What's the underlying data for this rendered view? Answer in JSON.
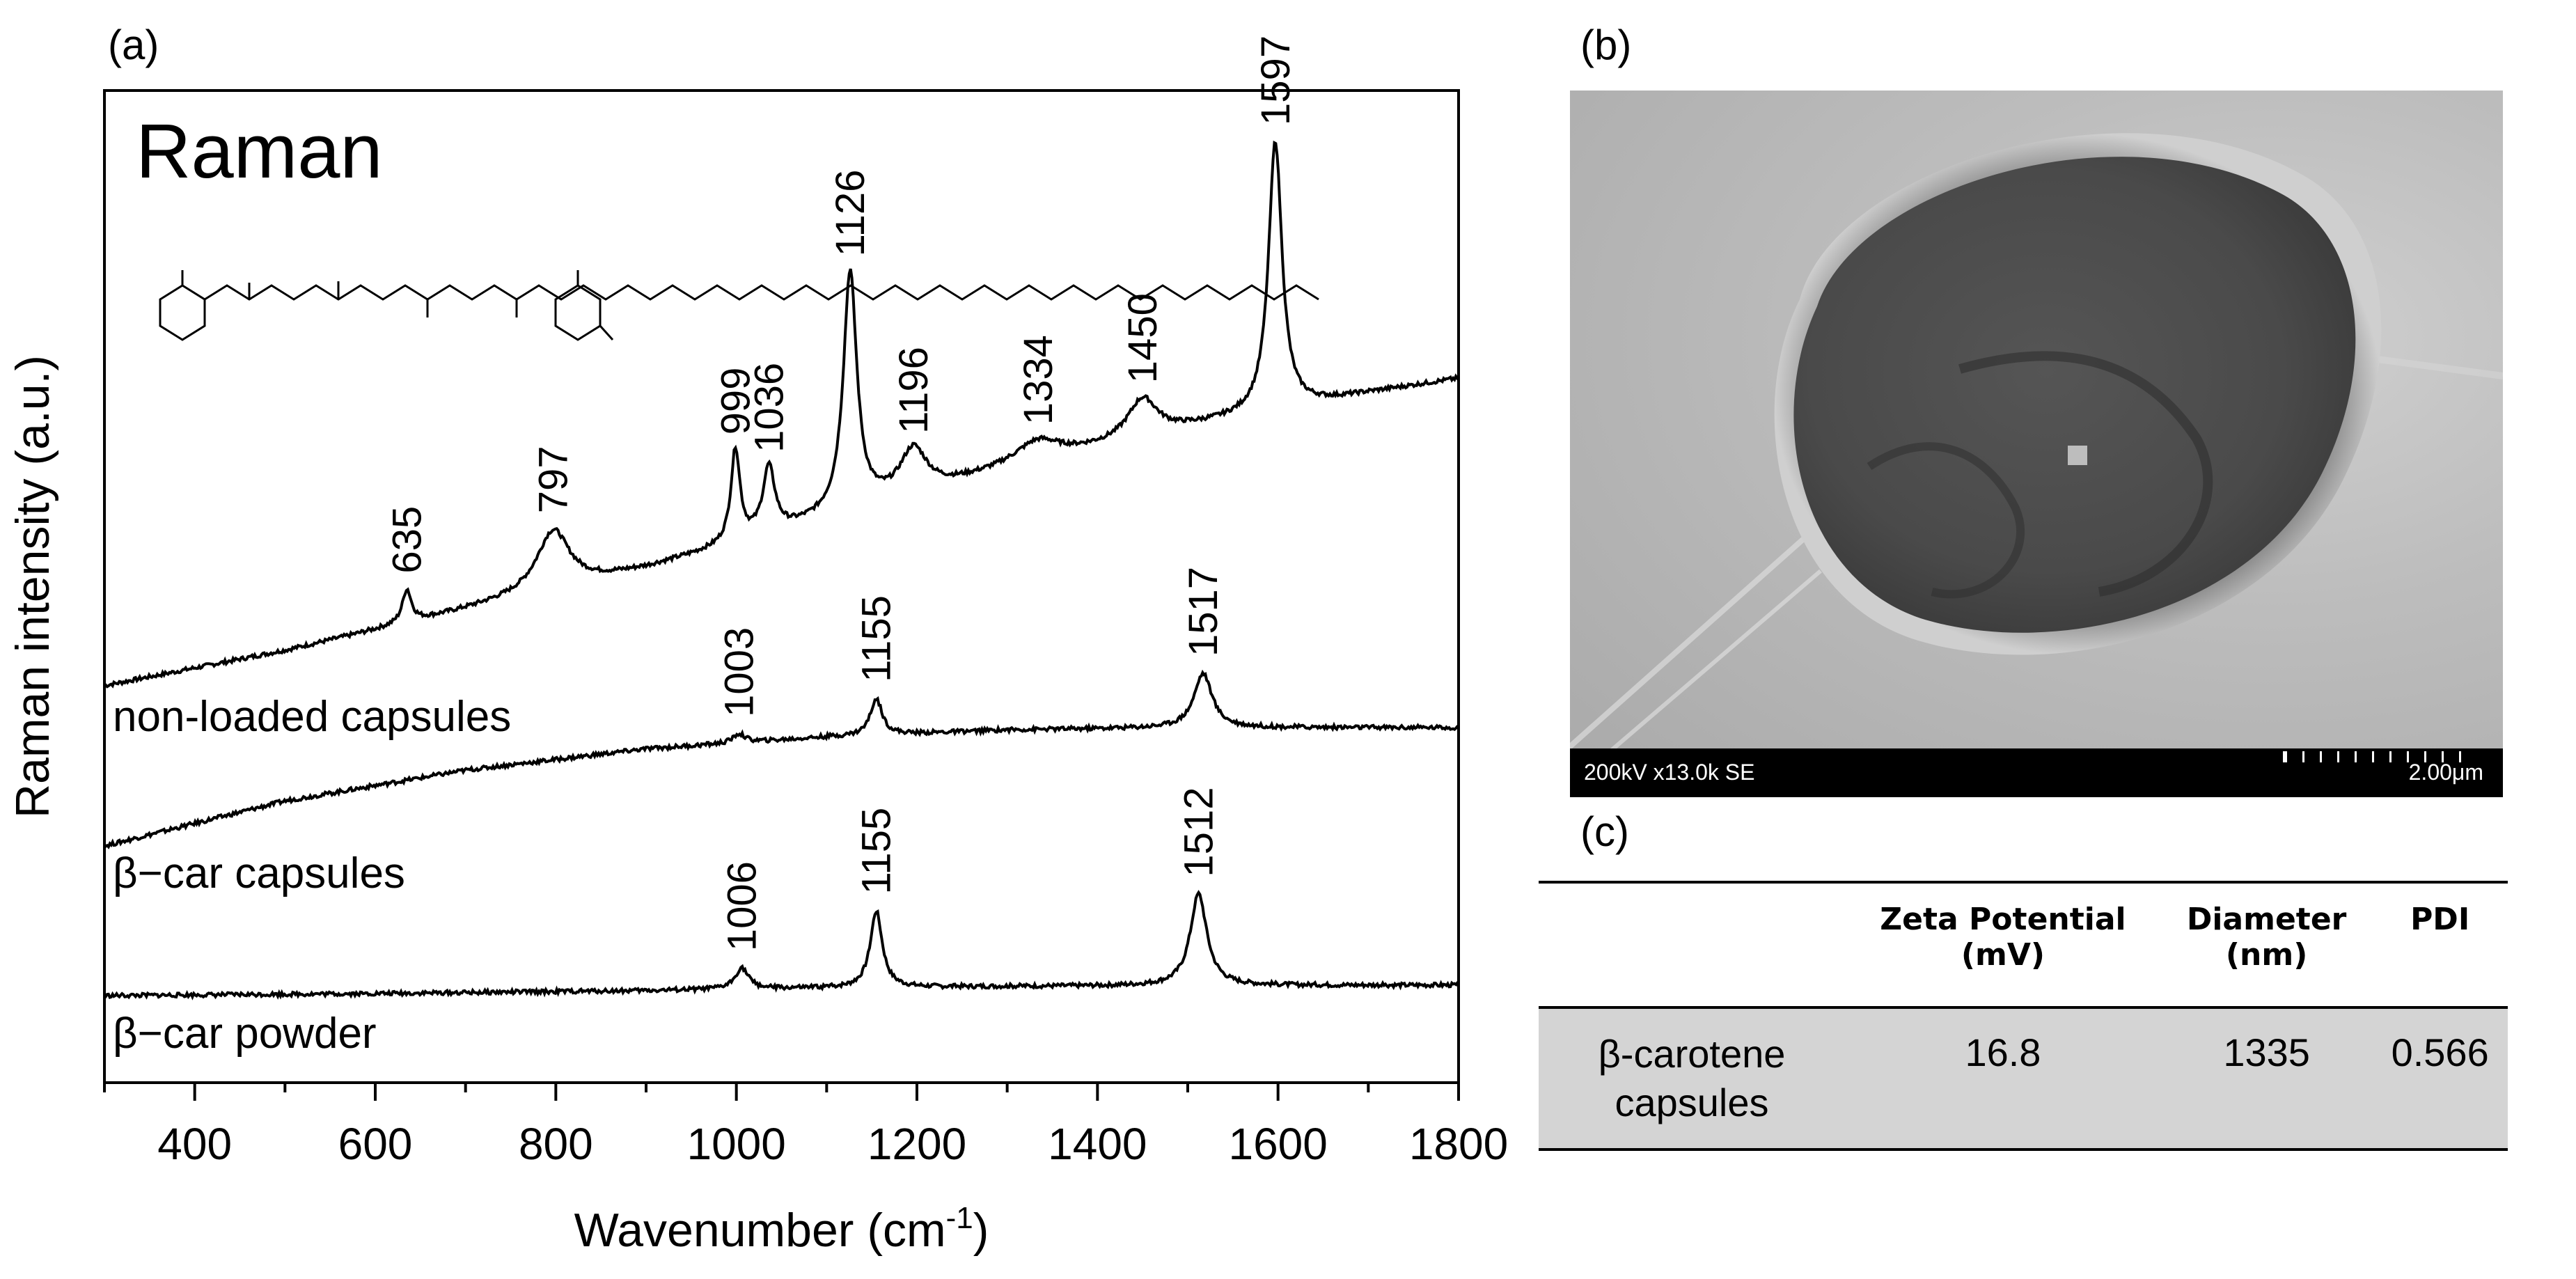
{
  "panels": {
    "a": "(a)",
    "b": "(b)",
    "c": "(c)"
  },
  "chart_data": {
    "type": "line",
    "title": "Raman",
    "xlabel": "Wavenumber (cm",
    "xlabel_sup": "-1",
    "xlabel_close": ")",
    "ylabel": "Raman intensity (a.u.)",
    "xlim": [
      300,
      1800
    ],
    "x_ticks": [
      400,
      600,
      800,
      1000,
      1200,
      1400,
      1600,
      1800
    ],
    "y_ticks": "none",
    "series": [
      {
        "name": "non-loaded capsules",
        "baseline": [
          [
            300,
            0.0
          ],
          [
            500,
            0.12
          ],
          [
            700,
            0.26
          ],
          [
            900,
            0.4
          ],
          [
            1100,
            0.57
          ],
          [
            1300,
            0.74
          ],
          [
            1500,
            0.88
          ],
          [
            1700,
            1.0
          ],
          [
            1800,
            1.05
          ]
        ],
        "peaks": [
          {
            "x": 635,
            "h": 0.22,
            "w": 6,
            "label": "635"
          },
          {
            "x": 797,
            "h": 0.4,
            "w": 22,
            "label": "797"
          },
          {
            "x": 999,
            "h": 0.62,
            "w": 6,
            "label": "999"
          },
          {
            "x": 1036,
            "h": 0.44,
            "w": 8,
            "label": "1036"
          },
          {
            "x": 1126,
            "h": 1.6,
            "w": 9,
            "label": "1126"
          },
          {
            "x": 1196,
            "h": 0.3,
            "w": 18,
            "label": "1196"
          },
          {
            "x": 1334,
            "h": 0.14,
            "w": 30,
            "label": "1334"
          },
          {
            "x": 1450,
            "h": 0.26,
            "w": 20,
            "label": "1450"
          },
          {
            "x": 1597,
            "h": 1.8,
            "w": 9,
            "label": "1597"
          }
        ]
      },
      {
        "name": "β−car capsules",
        "baseline": [
          [
            300,
            0.0
          ],
          [
            500,
            0.38
          ],
          [
            700,
            0.64
          ],
          [
            900,
            0.82
          ],
          [
            1100,
            0.92
          ],
          [
            1300,
            0.98
          ],
          [
            1500,
            1.0
          ],
          [
            1800,
            1.0
          ]
        ],
        "peaks": [
          {
            "x": 1003,
            "h": 0.1,
            "w": 8,
            "label": "1003"
          },
          {
            "x": 1155,
            "h": 0.4,
            "w": 8,
            "label": "1155"
          },
          {
            "x": 1517,
            "h": 0.6,
            "w": 12,
            "label": "1517"
          }
        ]
      },
      {
        "name": "β−car powder",
        "baseline": [
          [
            300,
            0.0
          ],
          [
            600,
            0.05
          ],
          [
            900,
            0.12
          ],
          [
            1100,
            0.18
          ],
          [
            1300,
            0.22
          ],
          [
            1500,
            0.24
          ],
          [
            1800,
            0.25
          ]
        ],
        "peaks": [
          {
            "x": 1006,
            "h": 0.28,
            "w": 9,
            "label": "1006"
          },
          {
            "x": 1155,
            "h": 1.0,
            "w": 8,
            "label": "1155"
          },
          {
            "x": 1512,
            "h": 1.2,
            "w": 11,
            "label": "1512"
          }
        ]
      }
    ]
  },
  "sem": {
    "info": "200kV  x13.0k  SE",
    "scale": "2.00μm"
  },
  "table": {
    "headers": [
      "",
      "Zeta Potential\n(mV)",
      "Diameter\n(nm)",
      "PDI"
    ],
    "row": {
      "sample_line1": "β-carotene",
      "sample_line2": "capsules",
      "zeta": "16.8",
      "diameter": "1335",
      "pdi": "0.566"
    }
  }
}
